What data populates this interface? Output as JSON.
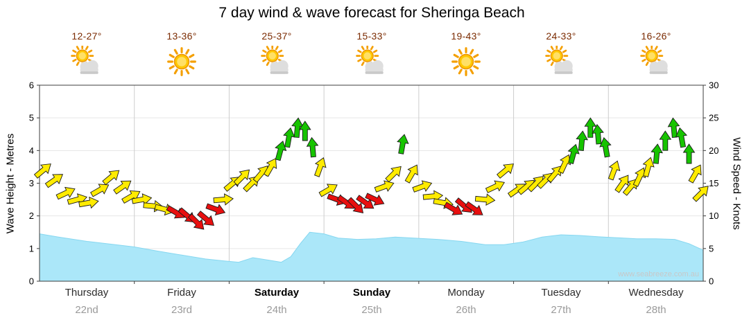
{
  "title": "7 day wind & wave forecast for Sheringa Beach",
  "watermark": "www.seabreeze.com.au",
  "axes": {
    "left_label": "Wave Height - Metres",
    "right_label": "Wind Speed - Knots"
  },
  "days": [
    {
      "name": "Thursday",
      "date": "22nd",
      "temp": "12-27°",
      "icon": "sun-cloud",
      "weekend": false
    },
    {
      "name": "Friday",
      "date": "23rd",
      "temp": "13-36°",
      "icon": "sun",
      "weekend": false
    },
    {
      "name": "Saturday",
      "date": "24th",
      "temp": "25-37°",
      "icon": "sun-cloud",
      "weekend": true
    },
    {
      "name": "Sunday",
      "date": "25th",
      "temp": "15-33°",
      "icon": "sun-cloud",
      "weekend": true
    },
    {
      "name": "Monday",
      "date": "26th",
      "temp": "19-43°",
      "icon": "sun",
      "weekend": false
    },
    {
      "name": "Tuesday",
      "date": "27th",
      "temp": "24-33°",
      "icon": "sun-cloud",
      "weekend": false
    },
    {
      "name": "Wednesday",
      "date": "28th",
      "temp": "16-26°",
      "icon": "sun-cloud",
      "weekend": false
    }
  ],
  "colors": {
    "arrow_yellow": "#FFEB00",
    "arrow_red": "#E80F0F",
    "arrow_green": "#17C400",
    "arrow_outline": "#1a1a1a",
    "wave_fill": "#ABE7F9",
    "wave_edge": "#86D7F0",
    "grid_vertical": "#cdcdcd",
    "grid_horizontal": "#e6e6e6",
    "plot_border": "#3c3c3c",
    "temp_text": "#7A2A00",
    "tick_text": "#000000"
  },
  "chart_data": {
    "type": "area",
    "title": "7 day wind & wave forecast for Sheringa Beach",
    "x_axis": {
      "unit": "days",
      "range": [
        0,
        7
      ],
      "categories": [
        "Thursday 22nd",
        "Friday 23rd",
        "Saturday 24th",
        "Sunday 25th",
        "Monday 26th",
        "Tuesday 27th",
        "Wednesday 28th"
      ]
    },
    "y_left": {
      "label": "Wave Height - Metres",
      "min": 0,
      "max": 6,
      "step": 1
    },
    "y_right": {
      "label": "Wind Speed - Knots",
      "min": 0,
      "max": 30,
      "step": 5
    },
    "grid": true,
    "legend": "none",
    "series": [
      {
        "name": "Wave Height",
        "type": "area",
        "axis": "left",
        "unit": "m",
        "points": [
          [
            0,
            1.45
          ],
          [
            0.2,
            1.35
          ],
          [
            0.5,
            1.22
          ],
          [
            0.8,
            1.12
          ],
          [
            1.0,
            1.05
          ],
          [
            1.25,
            0.92
          ],
          [
            1.5,
            0.8
          ],
          [
            1.75,
            0.68
          ],
          [
            1.95,
            0.62
          ],
          [
            2.1,
            0.58
          ],
          [
            2.25,
            0.72
          ],
          [
            2.4,
            0.65
          ],
          [
            2.55,
            0.58
          ],
          [
            2.65,
            0.75
          ],
          [
            2.75,
            1.15
          ],
          [
            2.85,
            1.5
          ],
          [
            3.0,
            1.45
          ],
          [
            3.15,
            1.32
          ],
          [
            3.35,
            1.28
          ],
          [
            3.55,
            1.3
          ],
          [
            3.75,
            1.35
          ],
          [
            3.95,
            1.32
          ],
          [
            4.2,
            1.28
          ],
          [
            4.45,
            1.22
          ],
          [
            4.7,
            1.12
          ],
          [
            4.9,
            1.12
          ],
          [
            5.1,
            1.2
          ],
          [
            5.3,
            1.35
          ],
          [
            5.5,
            1.42
          ],
          [
            5.7,
            1.4
          ],
          [
            5.9,
            1.36
          ],
          [
            6.1,
            1.33
          ],
          [
            6.3,
            1.3
          ],
          [
            6.5,
            1.3
          ],
          [
            6.7,
            1.28
          ],
          [
            6.85,
            1.15
          ],
          [
            7.0,
            0.95
          ]
        ]
      },
      {
        "name": "Wind Speed",
        "type": "vector-arrows",
        "axis": "right",
        "unit": "knots",
        "color_key": {
          "y": "yellow",
          "r": "red",
          "g": "green"
        },
        "points": [
          [
            0.04,
            17,
            50,
            "y"
          ],
          [
            0.16,
            15.5,
            55,
            "y"
          ],
          [
            0.28,
            13.5,
            65,
            "y"
          ],
          [
            0.4,
            12.5,
            75,
            "y"
          ],
          [
            0.52,
            12,
            80,
            "y"
          ],
          [
            0.64,
            14,
            60,
            "y"
          ],
          [
            0.76,
            16,
            50,
            "y"
          ],
          [
            0.88,
            14.5,
            55,
            "y"
          ],
          [
            0.97,
            13,
            60,
            "y"
          ],
          [
            1.08,
            12.5,
            80,
            "y"
          ],
          [
            1.2,
            11.5,
            95,
            "y"
          ],
          [
            1.32,
            11,
            105,
            "y"
          ],
          [
            1.44,
            10.5,
            120,
            "r"
          ],
          [
            1.56,
            10,
            130,
            "r"
          ],
          [
            1.66,
            9,
            135,
            "r"
          ],
          [
            1.76,
            9.5,
            130,
            "r"
          ],
          [
            1.86,
            11,
            110,
            "r"
          ],
          [
            1.94,
            12.5,
            85,
            "y"
          ],
          [
            2.04,
            15,
            50,
            "y"
          ],
          [
            2.14,
            16,
            45,
            "y"
          ],
          [
            2.24,
            15,
            45,
            "y"
          ],
          [
            2.34,
            16.5,
            40,
            "y"
          ],
          [
            2.44,
            17.5,
            30,
            "y"
          ],
          [
            2.54,
            20,
            15,
            "g"
          ],
          [
            2.63,
            22,
            10,
            "g"
          ],
          [
            2.72,
            23.5,
            5,
            "g"
          ],
          [
            2.8,
            23,
            0,
            "g"
          ],
          [
            2.88,
            20.5,
            355,
            "g"
          ],
          [
            2.96,
            17.5,
            20,
            "y"
          ],
          [
            3.05,
            14,
            60,
            "y"
          ],
          [
            3.14,
            12.5,
            110,
            "r"
          ],
          [
            3.24,
            12,
            125,
            "r"
          ],
          [
            3.34,
            11.5,
            135,
            "r"
          ],
          [
            3.44,
            12,
            125,
            "r"
          ],
          [
            3.54,
            12.5,
            115,
            "r"
          ],
          [
            3.64,
            14.5,
            70,
            "y"
          ],
          [
            3.74,
            16.5,
            45,
            "y"
          ],
          [
            3.83,
            21,
            10,
            "g"
          ],
          [
            3.93,
            16.5,
            30,
            "y"
          ],
          [
            4.04,
            14.5,
            70,
            "y"
          ],
          [
            4.15,
            13,
            85,
            "y"
          ],
          [
            4.26,
            12,
            100,
            "y"
          ],
          [
            4.37,
            11,
            120,
            "r"
          ],
          [
            4.48,
            11.5,
            130,
            "r"
          ],
          [
            4.59,
            11,
            125,
            "r"
          ],
          [
            4.7,
            12.5,
            95,
            "y"
          ],
          [
            4.81,
            14.5,
            65,
            "y"
          ],
          [
            4.92,
            17,
            50,
            "y"
          ],
          [
            5.04,
            14,
            55,
            "y"
          ],
          [
            5.14,
            14.5,
            50,
            "y"
          ],
          [
            5.24,
            15,
            45,
            "y"
          ],
          [
            5.34,
            15.5,
            45,
            "y"
          ],
          [
            5.44,
            16.5,
            40,
            "y"
          ],
          [
            5.54,
            18,
            25,
            "y"
          ],
          [
            5.63,
            19.5,
            15,
            "g"
          ],
          [
            5.72,
            21.5,
            5,
            "g"
          ],
          [
            5.81,
            23.5,
            0,
            "g"
          ],
          [
            5.89,
            22.5,
            355,
            "g"
          ],
          [
            5.97,
            20.5,
            350,
            "g"
          ],
          [
            6.06,
            17,
            20,
            "y"
          ],
          [
            6.15,
            15,
            35,
            "y"
          ],
          [
            6.24,
            14.5,
            40,
            "y"
          ],
          [
            6.33,
            16,
            25,
            "y"
          ],
          [
            6.42,
            17.5,
            15,
            "y"
          ],
          [
            6.51,
            19.5,
            5,
            "g"
          ],
          [
            6.6,
            21.5,
            0,
            "g"
          ],
          [
            6.69,
            23.5,
            355,
            "g"
          ],
          [
            6.77,
            22,
            350,
            "g"
          ],
          [
            6.85,
            19.5,
            0,
            "g"
          ],
          [
            6.92,
            16.5,
            30,
            "y"
          ],
          [
            6.98,
            13.5,
            45,
            "y"
          ]
        ]
      }
    ]
  }
}
